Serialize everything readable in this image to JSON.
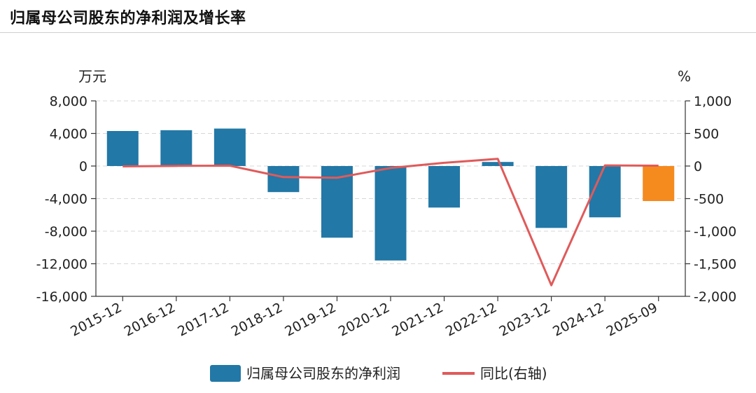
{
  "page_title": "归属母公司股东的净利润及增长率",
  "colors": {
    "bar": "#2278a6",
    "bar_highlight": "#f58a1f",
    "line": "#e05a5a",
    "grid": "#d7d7d7",
    "axis": "#333333"
  },
  "chart_data": {
    "type": "bar",
    "title": "归属母公司股东的净利润及增长率",
    "categories": [
      "2015-12",
      "2016-12",
      "2017-12",
      "2018-12",
      "2019-12",
      "2020-12",
      "2021-12",
      "2022-12",
      "2023-12",
      "2024-12",
      "2025-09"
    ],
    "y_left": {
      "unit": "万元",
      "ylim": [
        -16000,
        8000
      ],
      "ticks": [
        8000,
        4000,
        0,
        -4000,
        -8000,
        -12000,
        -16000
      ],
      "tick_labels": [
        "8,000",
        "4,000",
        "0",
        "-4,000",
        "-8,000",
        "-12,000",
        "-16,000"
      ]
    },
    "y_right": {
      "unit": "%",
      "ylim": [
        -2000,
        1000
      ],
      "ticks": [
        1000,
        500,
        0,
        -500,
        -1000,
        -1500,
        -2000
      ],
      "tick_labels": [
        "1,000",
        "500",
        "0",
        "-500",
        "-1,000",
        "-1,500",
        "-2,000"
      ]
    },
    "grid": true,
    "legend_position": "bottom",
    "series": [
      {
        "name": "归属母公司股东的净利润",
        "type": "bar",
        "axis": "left",
        "values": [
          4300,
          4400,
          4600,
          -3200,
          -8800,
          -11600,
          -5100,
          500,
          -7600,
          -6300,
          -4300
        ],
        "highlight_index": 10
      },
      {
        "name": "同比(右轴)",
        "type": "line",
        "axis": "right",
        "values": [
          -5,
          2,
          5,
          -170,
          -180,
          -30,
          50,
          110,
          -1830,
          10,
          5
        ]
      }
    ]
  }
}
